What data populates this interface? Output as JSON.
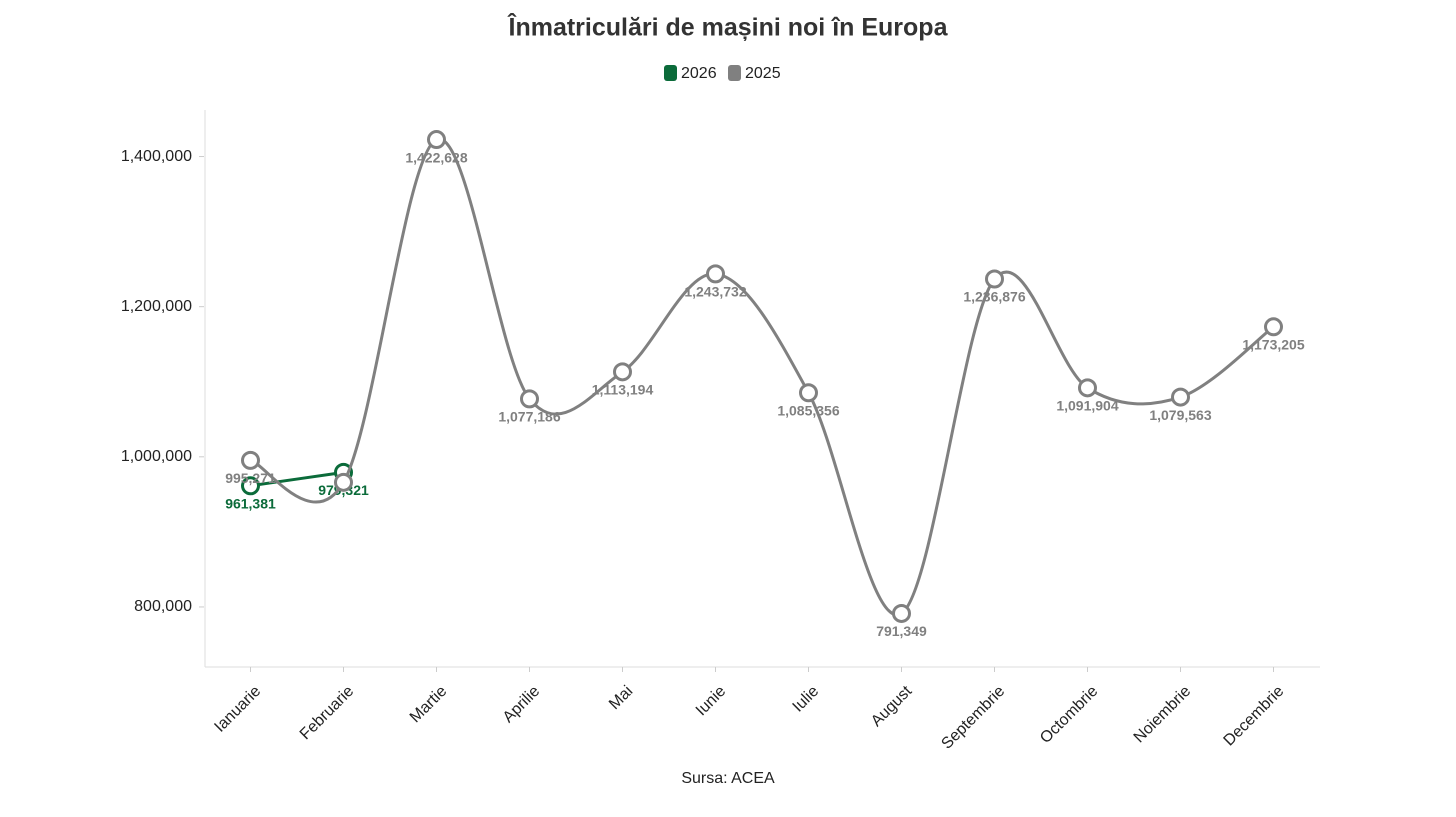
{
  "chart_data": {
    "type": "line",
    "title": "Înmatriculări de mașini noi în Europa",
    "source": "Sursa: ACEA",
    "legend": "top",
    "categories": [
      "Ianuarie",
      "Februarie",
      "Martie",
      "Aprilie",
      "Mai",
      "Iunie",
      "Iulie",
      "August",
      "Septembrie",
      "Octombrie",
      "Noiembrie",
      "Decembrie"
    ],
    "series": [
      {
        "name": "2026",
        "color": "#0b6b3a",
        "values": [
          961381,
          979321,
          null,
          null,
          null,
          null,
          null,
          null,
          null,
          null,
          null,
          null
        ],
        "value_labels": [
          "961,381",
          "979,321",
          null,
          null,
          null,
          null,
          null,
          null,
          null,
          null,
          null,
          null
        ]
      },
      {
        "name": "2025",
        "color": "#808080",
        "values": [
          995271,
          966000,
          1422628,
          1077186,
          1113194,
          1243732,
          1085356,
          791349,
          1236876,
          1091904,
          1079563,
          1173205
        ],
        "value_labels": [
          "995,271",
          null,
          "1,422,628",
          "1,077,186",
          "1,113,194",
          "1,243,732",
          "1,085,356",
          "791,349",
          "1,236,876",
          "1,091,904",
          "1,079,563",
          "1,173,205"
        ]
      }
    ],
    "ylim": [
      720000,
      1462000
    ],
    "yticks": [
      {
        "value": 800000,
        "label": "800,000"
      },
      {
        "value": 1000000,
        "label": "1,000,000"
      },
      {
        "value": 1200000,
        "label": "1,200,000"
      },
      {
        "value": 1400000,
        "label": "1,400,000"
      }
    ],
    "grid": false
  }
}
